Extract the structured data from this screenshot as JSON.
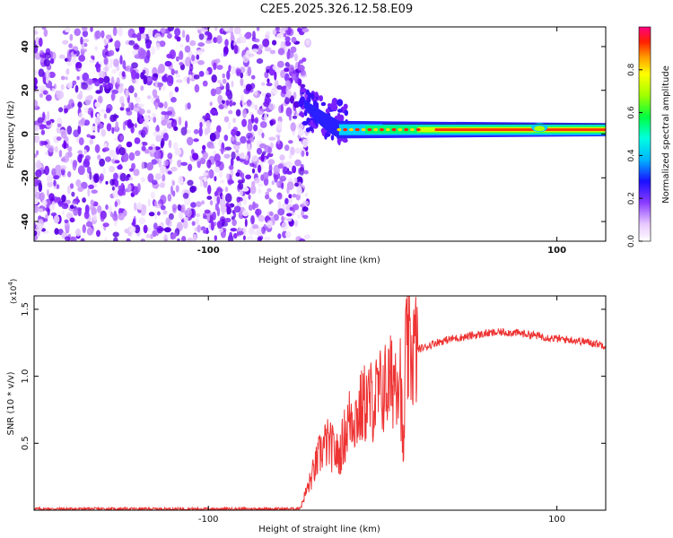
{
  "title": "C2E5.2025.326.12.58.E09",
  "chart_data": [
    {
      "type": "heatmap",
      "xlabel": "Height of straight line (km)",
      "ylabel": "Frequency (Hz)",
      "xlim": [
        -200,
        128
      ],
      "ylim": [
        -49,
        49
      ],
      "xticks": [
        -100,
        100
      ],
      "yticks": [
        -40,
        -20,
        0,
        20,
        40
      ],
      "colorbar": {
        "label": "Normalized spectral amplitude",
        "range": [
          0,
          1
        ],
        "ticks": [
          "0.0",
          "0.2",
          "0.4",
          "0.6",
          "0.8"
        ]
      },
      "features": {
        "noise_region_x": [
          -200,
          -47
        ],
        "transition_x": [
          -47,
          -25
        ],
        "signal_frequency_hz": 2,
        "max_amplitude": 1.0
      }
    },
    {
      "type": "line",
      "xlabel": "Height of straight line (km)",
      "ylabel": "SNR (10 * v/v)",
      "y_multiplier": "(x10^4)",
      "y_multiplier_base": "(x10",
      "y_multiplier_exp": "4",
      "y_multiplier_close": ")",
      "xlim": [
        -200,
        128
      ],
      "ylim": [
        0,
        1.6
      ],
      "xticks": [
        -100,
        100
      ],
      "yticks": [
        "0.5",
        "1.0",
        "1.5"
      ],
      "series": [
        {
          "color": "#ee3333",
          "x": [
            -200,
            -150,
            -100,
            -75,
            -50,
            -47,
            -45,
            -42,
            -38,
            -35,
            -32,
            -28,
            -25,
            -22,
            -18,
            -15,
            -10,
            -5,
            0,
            5,
            8,
            10,
            12,
            13,
            15,
            20,
            25,
            30,
            40,
            50,
            60,
            70,
            80,
            90,
            100,
            110,
            120,
            128
          ],
          "y": [
            0.01,
            0.01,
            0.01,
            0.01,
            0.01,
            0.02,
            0.1,
            0.2,
            0.35,
            0.45,
            0.5,
            0.45,
            0.4,
            0.55,
            0.72,
            0.7,
            0.8,
            0.82,
            0.9,
            0.95,
            1.05,
            1.1,
            0.3,
            1.15,
            1.18,
            1.2,
            1.22,
            1.25,
            1.28,
            1.3,
            1.32,
            1.33,
            1.32,
            1.3,
            1.28,
            1.27,
            1.25,
            1.23
          ]
        }
      ]
    }
  ]
}
